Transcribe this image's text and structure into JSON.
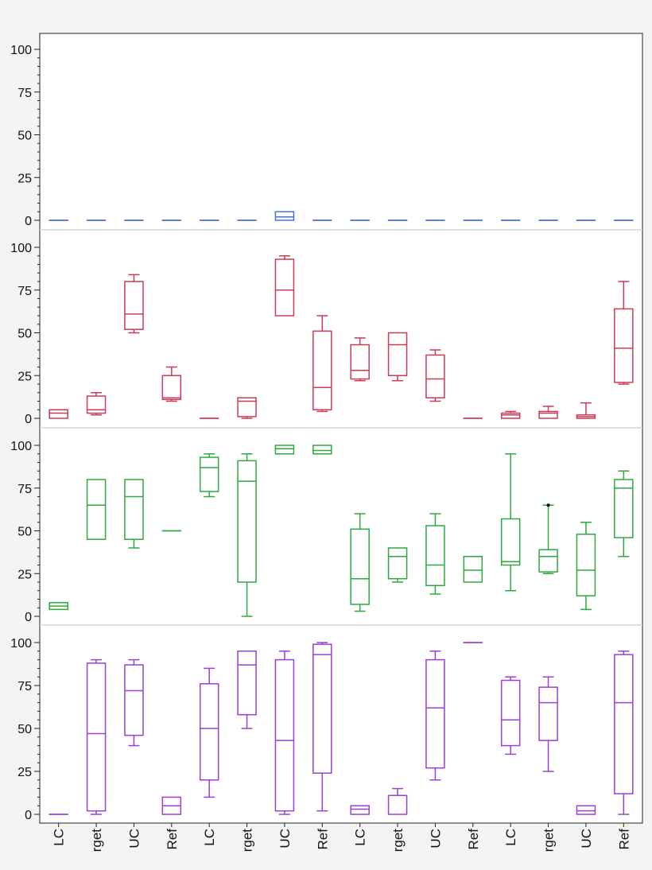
{
  "chart_data": {
    "type": "boxplot",
    "layout": "four stacked panels sharing x axis",
    "categories": [
      "LC",
      "rget",
      "UC",
      "Ref",
      "LC",
      "rget",
      "UC",
      "Ref",
      "LC",
      "rget",
      "UC",
      "Ref",
      "LC",
      "rget",
      "UC",
      "Ref"
    ],
    "ylim": [
      0,
      100
    ],
    "yticks": [
      "0",
      "25",
      "50",
      "75",
      "100"
    ],
    "grid": false,
    "panels": [
      {
        "color": "#4a72c8",
        "boxes": [
          {
            "min": 0,
            "q1": 0,
            "median": 0,
            "q3": 0,
            "max": 0
          },
          {
            "min": 0,
            "q1": 0,
            "median": 0,
            "q3": 0,
            "max": 0
          },
          {
            "min": 0,
            "q1": 0,
            "median": 0,
            "q3": 0,
            "max": 0
          },
          {
            "min": 0,
            "q1": 0,
            "median": 0,
            "q3": 0,
            "max": 0
          },
          {
            "min": 0,
            "q1": 0,
            "median": 0,
            "q3": 0,
            "max": 0
          },
          {
            "min": 0,
            "q1": 0,
            "median": 0,
            "q3": 0,
            "max": 0
          },
          {
            "min": 0,
            "q1": 0,
            "median": 2,
            "q3": 5,
            "max": 5
          },
          {
            "min": 0,
            "q1": 0,
            "median": 0,
            "q3": 0,
            "max": 0
          },
          {
            "min": 0,
            "q1": 0,
            "median": 0,
            "q3": 0,
            "max": 0
          },
          {
            "min": 0,
            "q1": 0,
            "median": 0,
            "q3": 0,
            "max": 0
          },
          {
            "min": 0,
            "q1": 0,
            "median": 0,
            "q3": 0,
            "max": 0
          },
          {
            "min": 0,
            "q1": 0,
            "median": 0,
            "q3": 0,
            "max": 0
          },
          {
            "min": 0,
            "q1": 0,
            "median": 0,
            "q3": 0,
            "max": 0
          },
          {
            "min": 0,
            "q1": 0,
            "median": 0,
            "q3": 0,
            "max": 0
          },
          {
            "min": 0,
            "q1": 0,
            "median": 0,
            "q3": 0,
            "max": 0
          },
          {
            "min": 0,
            "q1": 0,
            "median": 0,
            "q3": 0,
            "max": 0
          }
        ]
      },
      {
        "color": "#cc3b55",
        "boxes": [
          {
            "min": 0,
            "q1": 0,
            "median": 3,
            "q3": 5,
            "max": 5
          },
          {
            "min": 2,
            "q1": 3,
            "median": 5,
            "q3": 13,
            "max": 15
          },
          {
            "min": 50,
            "q1": 52,
            "median": 61,
            "q3": 80,
            "max": 84
          },
          {
            "min": 10,
            "q1": 11,
            "median": 12,
            "q3": 25,
            "max": 30
          },
          {
            "min": 0,
            "q1": 0,
            "median": 0,
            "q3": 0,
            "max": 0
          },
          {
            "min": 0,
            "q1": 1,
            "median": 10,
            "q3": 12,
            "max": 12
          },
          {
            "min": 60,
            "q1": 60,
            "median": 75,
            "q3": 93,
            "max": 95
          },
          {
            "min": 4,
            "q1": 5,
            "median": 18,
            "q3": 51,
            "max": 60
          },
          {
            "min": 22,
            "q1": 23,
            "median": 28,
            "q3": 43,
            "max": 47
          },
          {
            "min": 22,
            "q1": 25,
            "median": 43,
            "q3": 50,
            "max": 50
          },
          {
            "min": 10,
            "q1": 12,
            "median": 23,
            "q3": 37,
            "max": 40
          },
          {
            "min": 0,
            "q1": 0,
            "median": 0,
            "q3": 0,
            "max": 0
          },
          {
            "min": 0,
            "q1": 0,
            "median": 2,
            "q3": 3,
            "max": 4
          },
          {
            "min": 0,
            "q1": 0,
            "median": 3,
            "q3": 4,
            "max": 7
          },
          {
            "min": 0,
            "q1": 0,
            "median": 1,
            "q3": 2,
            "max": 9
          },
          {
            "min": 20,
            "q1": 21,
            "median": 41,
            "q3": 64,
            "max": 80
          }
        ]
      },
      {
        "color": "#2eaa3c",
        "boxes": [
          {
            "min": 4,
            "q1": 4,
            "median": 6,
            "q3": 8,
            "max": 8
          },
          {
            "min": 45,
            "q1": 45,
            "median": 65,
            "q3": 80,
            "max": 80
          },
          {
            "min": 40,
            "q1": 45,
            "median": 70,
            "q3": 80,
            "max": 80
          },
          {
            "min": 50,
            "q1": 50,
            "median": 50,
            "q3": 50,
            "max": 50
          },
          {
            "min": 70,
            "q1": 73,
            "median": 87,
            "q3": 93,
            "max": 95
          },
          {
            "min": 0,
            "q1": 20,
            "median": 79,
            "q3": 91,
            "max": 95
          },
          {
            "min": 95,
            "q1": 95,
            "median": 98,
            "q3": 100,
            "max": 100
          },
          {
            "min": 95,
            "q1": 95,
            "median": 97,
            "q3": 100,
            "max": 100
          },
          {
            "min": 3,
            "q1": 7,
            "median": 22,
            "q3": 51,
            "max": 60
          },
          {
            "min": 20,
            "q1": 22,
            "median": 35,
            "q3": 40,
            "max": 40
          },
          {
            "min": 13,
            "q1": 18,
            "median": 30,
            "q3": 53,
            "max": 60
          },
          {
            "min": 20,
            "q1": 20,
            "median": 27,
            "q3": 35,
            "max": 35
          },
          {
            "min": 15,
            "q1": 30,
            "median": 32,
            "q3": 57,
            "max": 95
          },
          {
            "min": 25,
            "q1": 26,
            "median": 35,
            "q3": 39,
            "max": 65,
            "outlier": 65
          },
          {
            "min": 4,
            "q1": 12,
            "median": 27,
            "q3": 48,
            "max": 55
          },
          {
            "min": 35,
            "q1": 46,
            "median": 75,
            "q3": 80,
            "max": 85
          }
        ]
      },
      {
        "color": "#9b3fd6",
        "boxes": [
          {
            "min": 0,
            "q1": 0,
            "median": 0,
            "q3": 0,
            "max": 0
          },
          {
            "min": 0,
            "q1": 2,
            "median": 47,
            "q3": 88,
            "max": 90
          },
          {
            "min": 40,
            "q1": 46,
            "median": 72,
            "q3": 87,
            "max": 90
          },
          {
            "min": 0,
            "q1": 0,
            "median": 5,
            "q3": 10,
            "max": 10
          },
          {
            "min": 10,
            "q1": 20,
            "median": 50,
            "q3": 76,
            "max": 85
          },
          {
            "min": 50,
            "q1": 58,
            "median": 87,
            "q3": 95,
            "max": 95
          },
          {
            "min": 0,
            "q1": 2,
            "median": 43,
            "q3": 90,
            "max": 95
          },
          {
            "min": 2,
            "q1": 24,
            "median": 93,
            "q3": 99,
            "max": 100
          },
          {
            "min": 0,
            "q1": 0,
            "median": 3,
            "q3": 5,
            "max": 5
          },
          {
            "min": 0,
            "q1": 0,
            "median": 11,
            "q3": 11,
            "max": 15
          },
          {
            "min": 20,
            "q1": 27,
            "median": 62,
            "q3": 90,
            "max": 95
          },
          {
            "min": 100,
            "q1": 100,
            "median": 100,
            "q3": 100,
            "max": 100
          },
          {
            "min": 35,
            "q1": 40,
            "median": 55,
            "q3": 78,
            "max": 80
          },
          {
            "min": 25,
            "q1": 43,
            "median": 65,
            "q3": 74,
            "max": 80
          },
          {
            "min": 0,
            "q1": 0,
            "median": 2,
            "q3": 5,
            "max": 5
          },
          {
            "min": 0,
            "q1": 12,
            "median": 65,
            "q3": 93,
            "max": 95
          }
        ]
      }
    ]
  }
}
